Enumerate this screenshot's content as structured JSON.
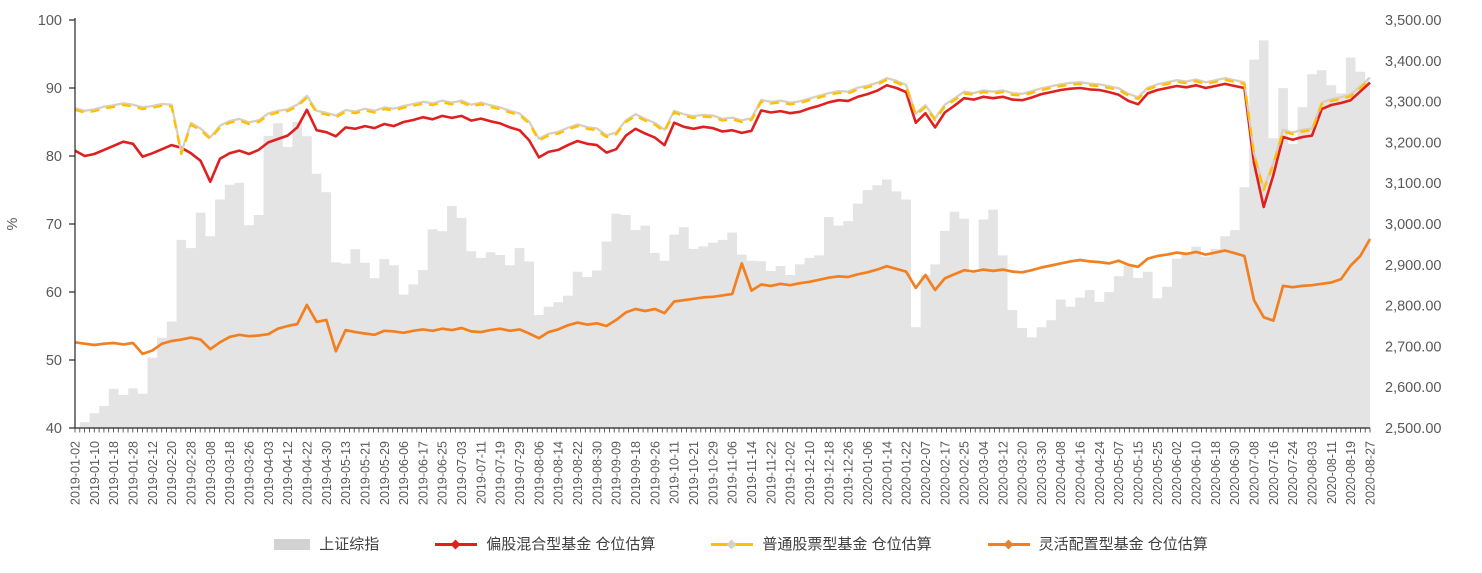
{
  "chart_data": {
    "type": "combo",
    "title": "",
    "background": "#FFFFFF",
    "grid": "off",
    "legend_position": "bottom",
    "left_axis": {
      "label": "%",
      "min": 40,
      "max": 100,
      "ticks": [
        100,
        90,
        80,
        70,
        60,
        50,
        40
      ]
    },
    "right_axis": {
      "min": 2500,
      "max": 3500,
      "tick_values": [
        3500,
        3400,
        3300,
        3200,
        3100,
        3000,
        2900,
        2800,
        2700,
        2600,
        2500
      ],
      "tick_labels": [
        "3,500.00",
        "3,400.00",
        "3,300.00",
        "3,200.00",
        "3,100.00",
        "3,000.00",
        "2,900.00",
        "2,800.00",
        "2,700.00",
        "2,600.00",
        "2,500.00"
      ]
    },
    "x_tick_labels": [
      "2019-01-02",
      "2019-01-10",
      "2019-01-18",
      "2019-01-28",
      "2019-02-12",
      "2019-02-20",
      "2019-02-28",
      "2019-03-08",
      "2019-03-18",
      "2019-03-26",
      "2019-04-03",
      "2019-04-12",
      "2019-04-22",
      "2019-04-30",
      "2019-05-13",
      "2019-05-21",
      "2019-05-29",
      "2019-06-06",
      "2019-06-17",
      "2019-06-25",
      "2019-07-03",
      "2019-07-11",
      "2019-07-19",
      "2019-07-29",
      "2019-08-06",
      "2019-08-14",
      "2019-08-22",
      "2019-08-30",
      "2019-09-09",
      "2019-09-18",
      "2019-09-26",
      "2019-10-11",
      "2019-10-21",
      "2019-10-29",
      "2019-11-06",
      "2019-11-14",
      "2019-11-22",
      "2019-12-02",
      "2019-12-10",
      "2019-12-18",
      "2019-12-26",
      "2020-01-06",
      "2020-01-14",
      "2020-01-22",
      "2020-02-07",
      "2020-02-17",
      "2020-02-25",
      "2020-03-04",
      "2020-03-12",
      "2020-03-20",
      "2020-03-30",
      "2020-04-08",
      "2020-04-16",
      "2020-04-24",
      "2020-05-07",
      "2020-05-15",
      "2020-05-25",
      "2020-06-02",
      "2020-06-10",
      "2020-06-18",
      "2020-06-30",
      "2020-07-08",
      "2020-07-16",
      "2020-07-24",
      "2020-08-03",
      "2020-08-11",
      "2020-08-19",
      "2020-08-27"
    ],
    "series": [
      {
        "name": "上证综指",
        "type": "area",
        "axis": "right",
        "color": "#E4E4E4",
        "legend_swatch_color": "#D2D2D2",
        "values": [
          2465,
          2514,
          2536,
          2554,
          2596,
          2581,
          2597,
          2584,
          2672,
          2721,
          2761,
          2961,
          2941,
          3028,
          2970,
          3060,
          3096,
          3101,
          2997,
          3022,
          3216,
          3247,
          3189,
          3250,
          3215,
          3123,
          3078,
          2906,
          2903,
          2938,
          2905,
          2867,
          2914,
          2899,
          2827,
          2852,
          2887,
          2987,
          2982,
          3044,
          3015,
          2933,
          2917,
          2931,
          2924,
          2899,
          2941,
          2908,
          2777,
          2797,
          2808,
          2824,
          2883,
          2870,
          2886,
          2957,
          3025,
          3022,
          2985,
          2996,
          2929,
          2910,
          2974,
          2992,
          2939,
          2945,
          2954,
          2961,
          2979,
          2925,
          2910,
          2909,
          2885,
          2897,
          2875,
          2901,
          2917,
          2923,
          3017,
          2996,
          3007,
          3050,
          3083,
          3095,
          3109,
          3080,
          3060,
          2747,
          2875,
          2901,
          2983,
          3030,
          3013,
          2880,
          3011,
          3035,
          2923,
          2789,
          2745,
          2722,
          2747,
          2764,
          2815,
          2797,
          2819,
          2838,
          2809,
          2833,
          2872,
          2898,
          2868,
          2883,
          2818,
          2846,
          2915,
          2930,
          2944,
          2920,
          2939,
          2970,
          2985,
          3090,
          3403,
          3450,
          3210,
          3333,
          3196,
          3286,
          3367,
          3377,
          3340,
          3320,
          3408,
          3373,
          3350
        ]
      },
      {
        "name": "偏股混合型基金 仓位估算",
        "type": "line",
        "axis": "left",
        "color": "#E02020",
        "values": [
          80.8,
          80.0,
          80.3,
          80.9,
          81.5,
          82.1,
          81.8,
          79.9,
          80.4,
          81.0,
          81.6,
          81.2,
          80.4,
          79.3,
          76.2,
          79.6,
          80.4,
          80.8,
          80.3,
          80.9,
          82.0,
          82.5,
          83.0,
          84.2,
          86.8,
          83.8,
          83.5,
          82.9,
          84.2,
          84.0,
          84.4,
          84.1,
          84.7,
          84.4,
          85.0,
          85.3,
          85.7,
          85.4,
          85.9,
          85.6,
          85.9,
          85.2,
          85.5,
          85.1,
          84.8,
          84.2,
          83.8,
          82.3,
          79.8,
          80.6,
          80.9,
          81.6,
          82.2,
          81.8,
          81.6,
          80.5,
          81.0,
          83.0,
          84.0,
          83.3,
          82.7,
          81.6,
          84.9,
          84.3,
          84.0,
          84.3,
          84.1,
          83.6,
          83.8,
          83.4,
          83.7,
          86.7,
          86.4,
          86.6,
          86.3,
          86.5,
          87.0,
          87.4,
          87.9,
          88.2,
          88.1,
          88.7,
          89.1,
          89.6,
          90.4,
          90.0,
          89.4,
          84.9,
          86.3,
          84.2,
          86.4,
          87.4,
          88.5,
          88.3,
          88.7,
          88.5,
          88.7,
          88.3,
          88.2,
          88.6,
          89.1,
          89.4,
          89.7,
          89.9,
          90.0,
          89.8,
          89.7,
          89.4,
          89.0,
          88.1,
          87.6,
          89.2,
          89.7,
          90.0,
          90.3,
          90.1,
          90.4,
          90.0,
          90.3,
          90.6,
          90.3,
          90.0,
          79.0,
          72.5,
          77.2,
          82.8,
          82.4,
          82.8,
          83.0,
          86.9,
          87.5,
          87.8,
          88.2,
          89.5,
          90.8
        ]
      },
      {
        "name": "普通股票型基金 仓位估算",
        "type": "line",
        "axis": "left",
        "color": "#FFC000",
        "marker_color": "#D7D0C2",
        "values": [
          86.8,
          86.4,
          86.6,
          87.0,
          87.2,
          87.5,
          87.3,
          86.9,
          87.1,
          87.4,
          87.3,
          80.3,
          84.6,
          83.8,
          82.5,
          84.2,
          84.9,
          85.2,
          84.7,
          85.0,
          86.0,
          86.4,
          86.6,
          87.3,
          88.6,
          86.4,
          86.1,
          85.7,
          86.5,
          86.3,
          86.7,
          86.4,
          86.9,
          86.7,
          87.1,
          87.4,
          87.7,
          87.5,
          87.9,
          87.6,
          87.9,
          87.3,
          87.6,
          87.2,
          86.9,
          86.4,
          86.0,
          84.8,
          82.3,
          83.0,
          83.3,
          83.9,
          84.4,
          84.0,
          83.8,
          82.8,
          83.2,
          85.0,
          85.9,
          85.2,
          84.6,
          83.6,
          86.4,
          85.9,
          85.6,
          85.8,
          85.7,
          85.2,
          85.4,
          85.0,
          85.3,
          88.0,
          87.7,
          87.9,
          87.6,
          87.8,
          88.2,
          88.6,
          89.0,
          89.3,
          89.2,
          89.8,
          90.1,
          90.5,
          91.2,
          90.8,
          90.2,
          86.0,
          87.2,
          85.3,
          87.3,
          88.2,
          89.2,
          89.0,
          89.4,
          89.2,
          89.4,
          89.0,
          88.9,
          89.3,
          89.7,
          90.0,
          90.3,
          90.5,
          90.6,
          90.4,
          90.3,
          90.0,
          89.7,
          88.9,
          88.4,
          89.8,
          90.3,
          90.6,
          90.9,
          90.7,
          91.0,
          90.6,
          90.9,
          91.2,
          90.9,
          90.6,
          80.2,
          75.0,
          78.8,
          83.6,
          83.2,
          83.6,
          83.8,
          87.6,
          88.1,
          88.4,
          88.8,
          90.0,
          91.3
        ]
      },
      {
        "name": "灵活配置型基金 仓位估算",
        "type": "line",
        "axis": "left",
        "color": "#F28020",
        "values": [
          52.6,
          52.4,
          52.2,
          52.4,
          52.5,
          52.3,
          52.5,
          50.9,
          51.4,
          52.4,
          52.8,
          53.0,
          53.3,
          53.0,
          51.6,
          52.6,
          53.4,
          53.7,
          53.5,
          53.6,
          53.8,
          54.6,
          55.0,
          55.3,
          58.1,
          55.6,
          55.9,
          51.3,
          54.4,
          54.1,
          53.9,
          53.7,
          54.3,
          54.2,
          54.0,
          54.3,
          54.5,
          54.3,
          54.6,
          54.4,
          54.7,
          54.2,
          54.1,
          54.4,
          54.6,
          54.3,
          54.5,
          53.9,
          53.2,
          54.1,
          54.5,
          55.1,
          55.5,
          55.2,
          55.4,
          55.0,
          55.9,
          57.0,
          57.5,
          57.2,
          57.5,
          56.9,
          58.6,
          58.8,
          59.0,
          59.2,
          59.3,
          59.5,
          59.7,
          64.2,
          60.2,
          61.1,
          60.9,
          61.2,
          61.0,
          61.3,
          61.5,
          61.8,
          62.1,
          62.3,
          62.2,
          62.6,
          62.9,
          63.3,
          63.8,
          63.4,
          63.0,
          60.6,
          62.5,
          60.3,
          62.0,
          62.6,
          63.2,
          63.0,
          63.3,
          63.1,
          63.3,
          63.0,
          62.9,
          63.2,
          63.6,
          63.9,
          64.2,
          64.5,
          64.7,
          64.5,
          64.4,
          64.2,
          64.6,
          64.0,
          63.7,
          64.9,
          65.3,
          65.5,
          65.8,
          65.6,
          65.9,
          65.5,
          65.8,
          66.1,
          65.7,
          65.3,
          58.8,
          56.3,
          55.8,
          60.9,
          60.7,
          60.9,
          61.0,
          61.2,
          61.4,
          61.9,
          63.9,
          65.3,
          67.8
        ]
      }
    ],
    "text_color": "#595959",
    "axis_line_color": "#262626"
  }
}
